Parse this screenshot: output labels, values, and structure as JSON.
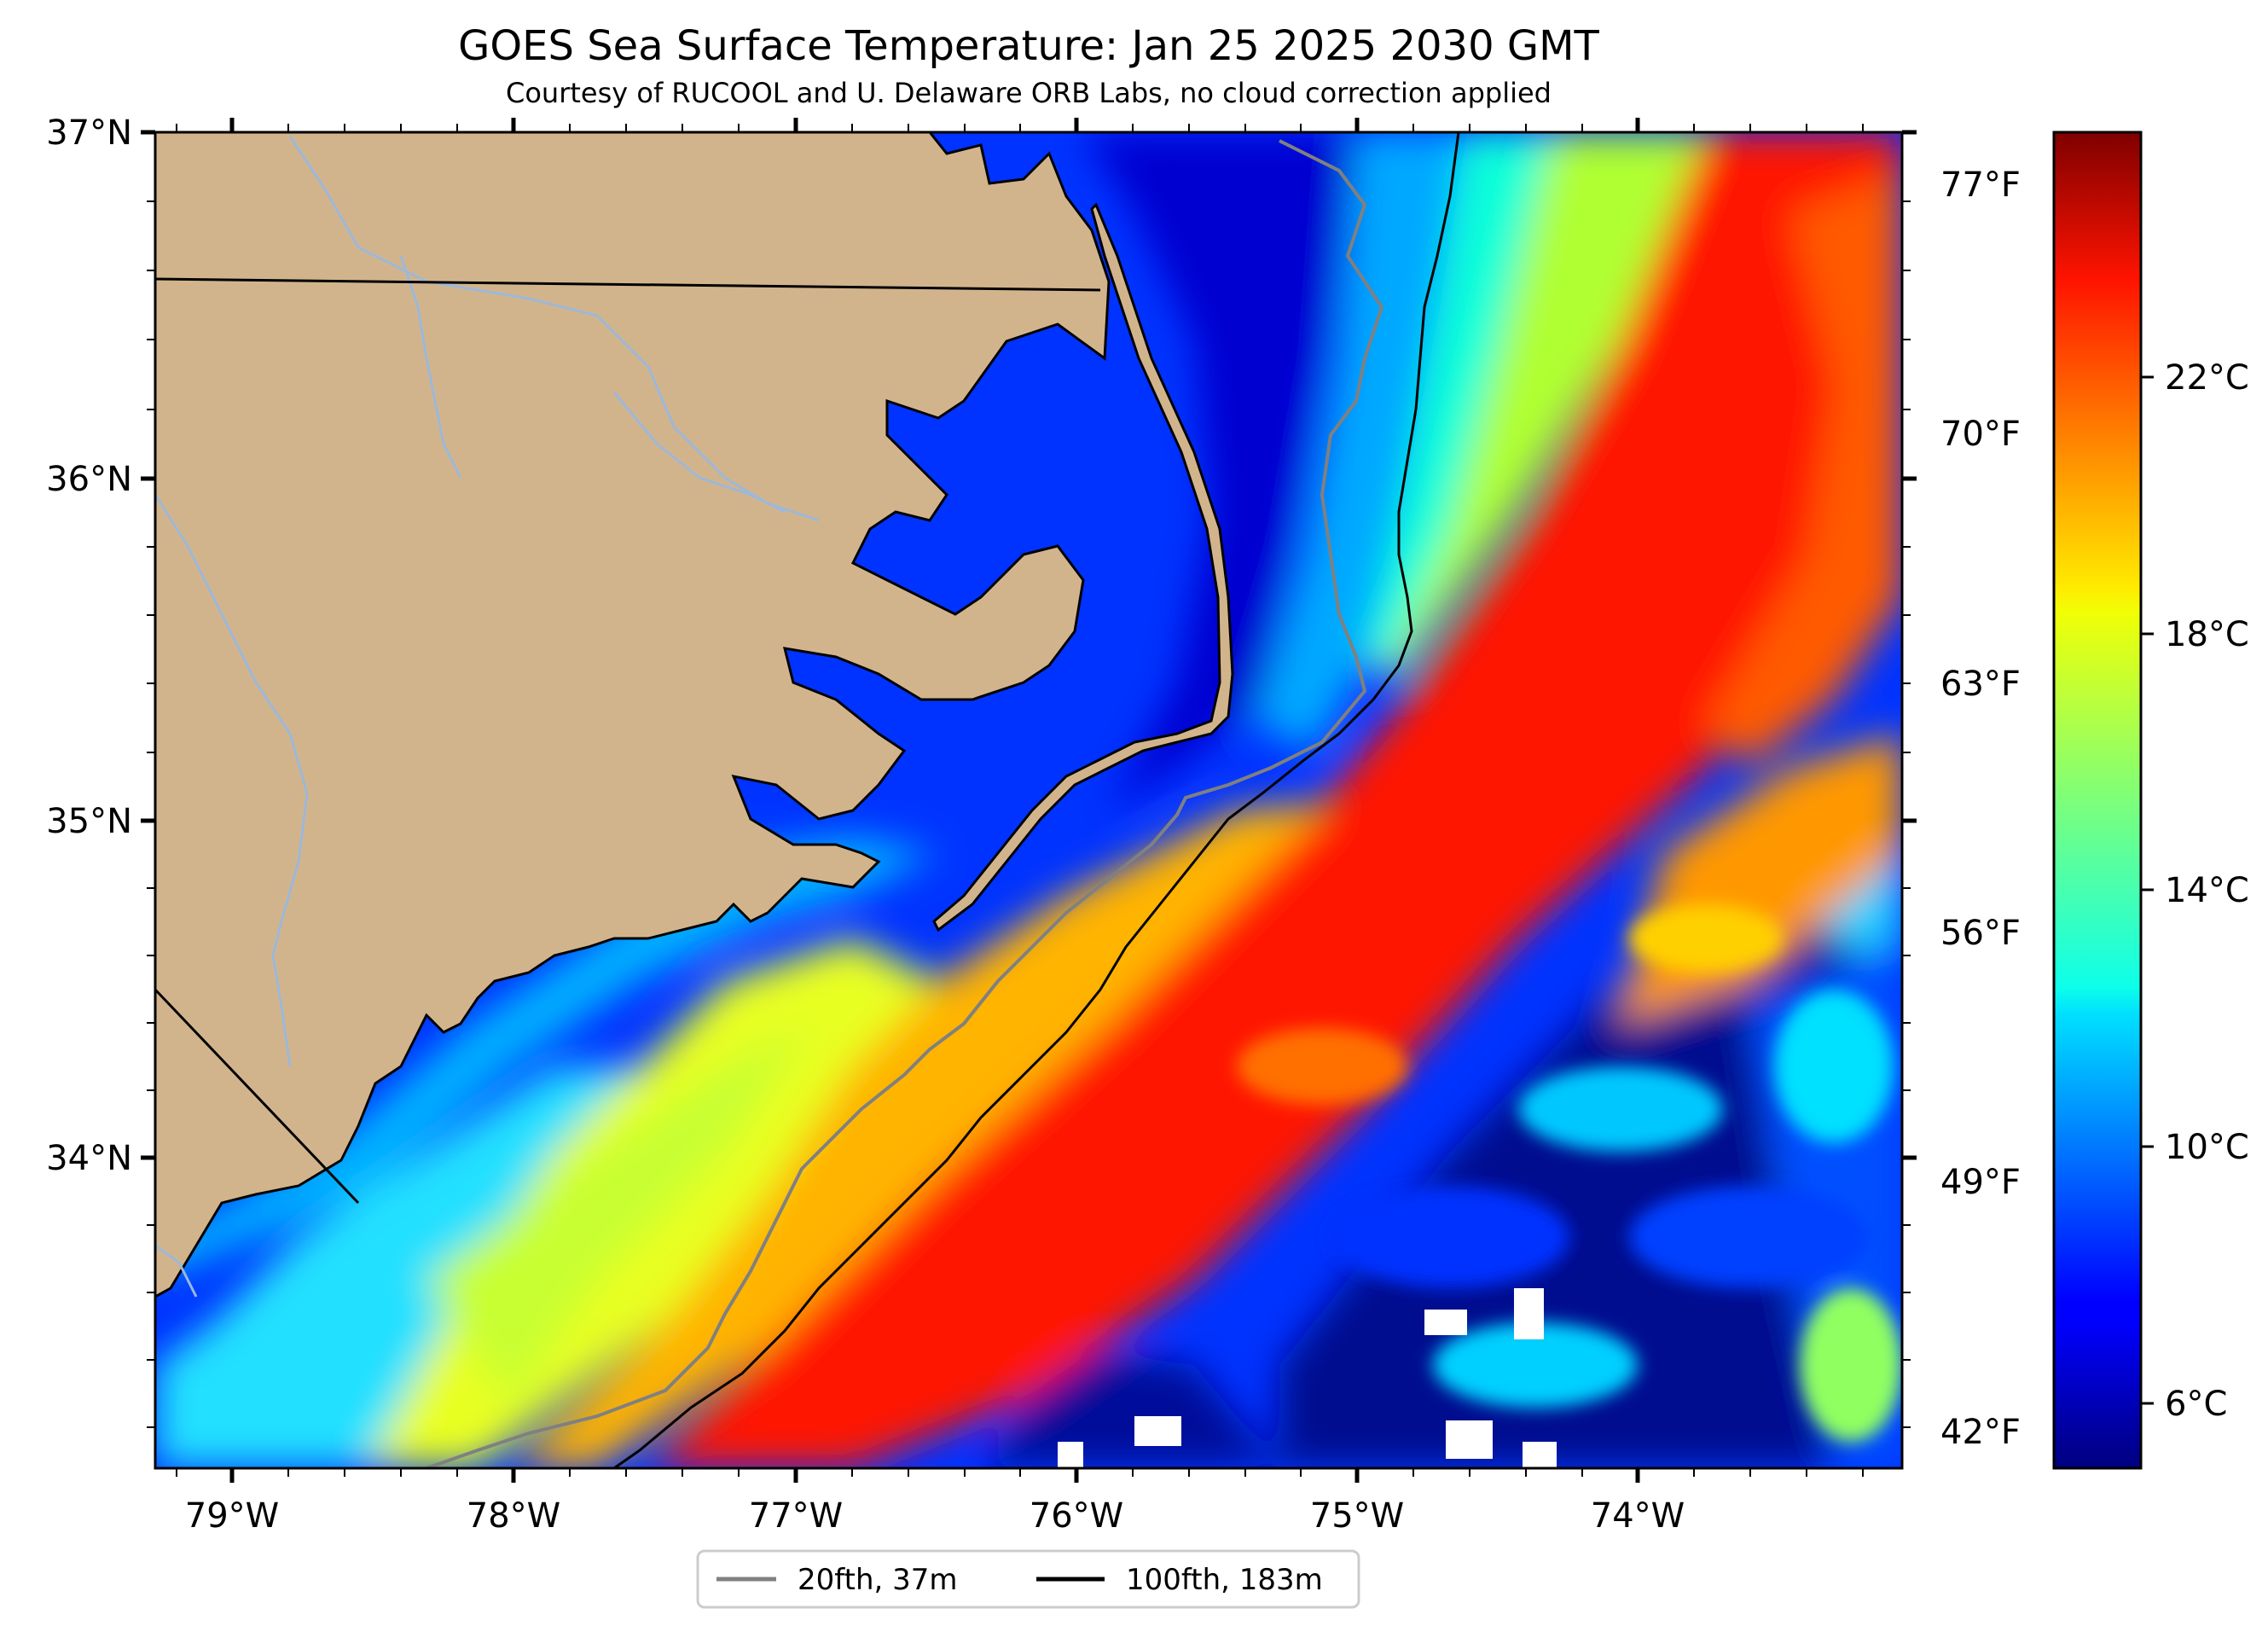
{
  "header": {
    "title": "GOES Sea Surface Temperature: Jan 25 2025 2030 GMT",
    "subtitle": "Courtesy of RUCOOL and U. Delaware ORB Labs, no cloud correction applied"
  },
  "map": {
    "lat_labels": [
      "37°N",
      "36°N",
      "35°N",
      "34°N"
    ],
    "lon_labels": [
      "79°W",
      "78°W",
      "77°W",
      "76°W",
      "75°W",
      "74°W"
    ],
    "lat_range": [
      33.1,
      37.0
    ],
    "lon_range": [
      -79.3,
      -73.1
    ],
    "colors": {
      "land": "#d2b48c",
      "coast": "#000000",
      "rivers": "#9db8d9",
      "isobath_20fth": "#808080",
      "isobath_100fth": "#000000"
    }
  },
  "colorbar": {
    "fahrenheit_labels": [
      "77°F",
      "70°F",
      "63°F",
      "56°F",
      "49°F",
      "42°F"
    ],
    "celsius_labels": [
      "22°C",
      "18°C",
      "14°C",
      "10°C",
      "6°C"
    ],
    "colormap": "jet"
  },
  "legend": {
    "items": [
      {
        "label": "20fth, 37m",
        "color": "#808080"
      },
      {
        "label": "100fth, 183m",
        "color": "#000000"
      }
    ]
  }
}
